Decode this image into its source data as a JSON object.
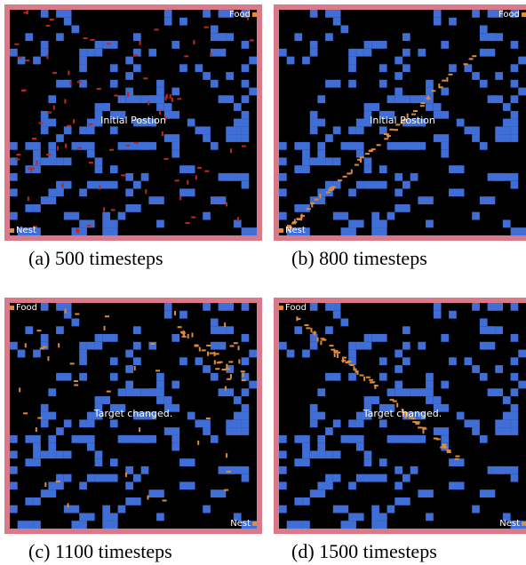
{
  "colors": {
    "border": "#d87a8a",
    "background": "#000000",
    "obstacle": "#3f6fd6",
    "ant_red": "#c0281e",
    "ant_orange": "#e08a3a",
    "label": "#ffffff"
  },
  "panels": [
    {
      "id": "a",
      "center_label": "Initial Postion",
      "corner_top": "Food",
      "corner_bottom": "Nest",
      "caption": "(a) 500 timesteps"
    },
    {
      "id": "b",
      "center_label": "Initial Postion",
      "corner_top": "Food",
      "corner_bottom": "Nest",
      "caption": "(b) 800 timesteps"
    },
    {
      "id": "c",
      "center_label": "Target changed.",
      "corner_top": "Food",
      "corner_bottom": "Nest",
      "caption": "(c) 1100 timesteps"
    },
    {
      "id": "d",
      "center_label": "Target changed.",
      "corner_top": "Food",
      "corner_bottom": "Nest",
      "caption": "(d) 1500 timesteps"
    }
  ]
}
